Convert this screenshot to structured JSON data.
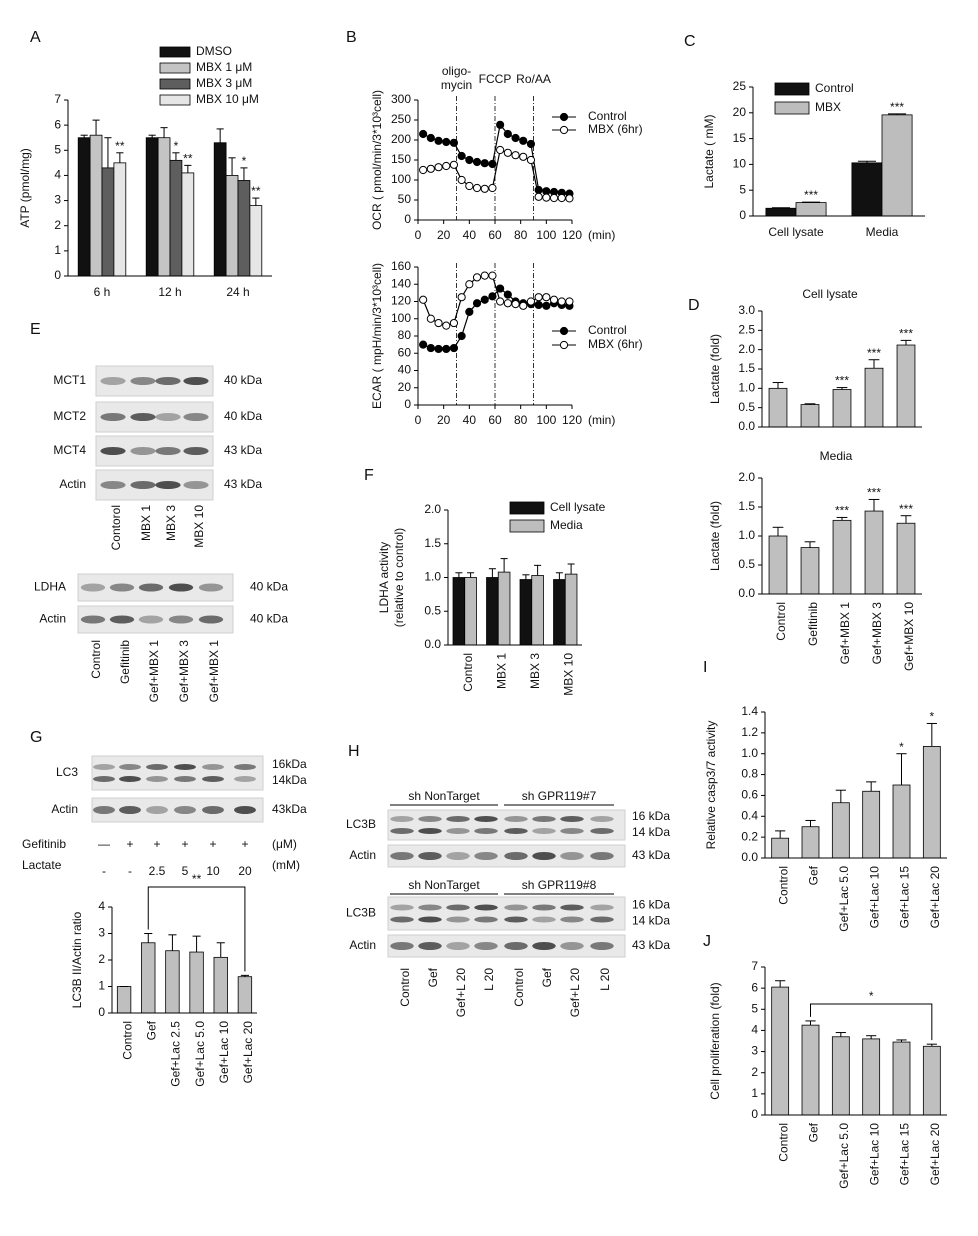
{
  "panel_labels": [
    "A",
    "B",
    "C",
    "D",
    "E",
    "F",
    "G",
    "H",
    "I",
    "J"
  ],
  "chart_data": [
    {
      "type": "bar",
      "y_label": "ATP (pmol/mg)",
      "categories": [
        "6 h",
        "12 h",
        "24 h"
      ],
      "series": [
        {
          "name": "DMSO",
          "color": "#111111",
          "values": [
            5.5,
            5.5,
            5.3
          ],
          "errors": [
            0.1,
            0.1,
            0.55
          ],
          "stars": [
            null,
            null,
            null
          ]
        },
        {
          "name": "MBX 1 μM",
          "color": "#c4c4c4",
          "values": [
            5.6,
            5.5,
            4.0
          ],
          "errors": [
            0.6,
            0.4,
            0.7
          ],
          "stars": [
            null,
            null,
            null
          ]
        },
        {
          "name": "MBX 3 μM",
          "color": "#5e5e5e",
          "values": [
            4.3,
            4.6,
            3.8
          ],
          "errors": [
            1.2,
            0.3,
            0.5
          ],
          "stars": [
            null,
            "*",
            "*"
          ]
        },
        {
          "name": "MBX 10 μM",
          "color": "#e6e6e6",
          "values": [
            4.5,
            4.1,
            2.8
          ],
          "errors": [
            0.4,
            0.3,
            0.3
          ],
          "stars": [
            "**",
            "**",
            "**"
          ]
        }
      ],
      "ylim": [
        0,
        7
      ],
      "yticks": [
        0,
        1,
        2,
        3,
        4,
        5,
        6,
        7
      ]
    },
    {
      "type": "line",
      "y_label": "OCR ( pmol/min/3*10³cell)",
      "x_label": "(min)",
      "x": [
        4,
        10,
        16,
        22,
        28,
        34,
        40,
        46,
        52,
        58,
        64,
        70,
        76,
        82,
        88,
        94,
        100,
        106,
        112,
        118
      ],
      "series": [
        {
          "name": "Control",
          "color": "#000000",
          "values": [
            215,
            205,
            198,
            195,
            193,
            160,
            150,
            145,
            142,
            140,
            238,
            215,
            205,
            198,
            190,
            75,
            72,
            70,
            68,
            66
          ]
        },
        {
          "name": "MBX (6hr)",
          "color": "#ffffff",
          "values": [
            125,
            128,
            132,
            135,
            138,
            100,
            85,
            80,
            78,
            80,
            175,
            168,
            162,
            158,
            150,
            58,
            56,
            55,
            55,
            54
          ]
        }
      ],
      "injections": [
        {
          "x": 30,
          "label": [
            "oligo-",
            "mycin"
          ]
        },
        {
          "x": 60,
          "label": [
            "FCCP"
          ]
        },
        {
          "x": 90,
          "label": [
            "Ro/AA"
          ]
        }
      ],
      "xlim": [
        0,
        120
      ],
      "xticks": [
        0,
        20,
        40,
        60,
        80,
        100,
        120
      ],
      "ylim": [
        0,
        300
      ],
      "yticks": [
        0,
        50,
        100,
        150,
        200,
        250,
        300
      ]
    },
    {
      "type": "line",
      "y_label": "ECAR ( mpH/min/3*10³cell)",
      "x_label": "(min)",
      "x": [
        4,
        10,
        16,
        22,
        28,
        34,
        40,
        46,
        52,
        58,
        64,
        70,
        76,
        82,
        88,
        94,
        100,
        106,
        112,
        118
      ],
      "series": [
        {
          "name": "Control",
          "color": "#000000",
          "values": [
            70,
            66,
            65,
            65,
            66,
            80,
            108,
            118,
            122,
            126,
            135,
            128,
            120,
            118,
            117,
            116,
            115,
            118,
            116,
            115
          ]
        },
        {
          "name": "MBX (6hr)",
          "color": "#ffffff",
          "values": [
            122,
            100,
            95,
            92,
            95,
            125,
            140,
            148,
            150,
            150,
            120,
            118,
            117,
            115,
            120,
            125,
            125,
            122,
            120,
            120
          ]
        }
      ],
      "injections": [
        {
          "x": 30
        },
        {
          "x": 60
        },
        {
          "x": 90
        }
      ],
      "xlim": [
        0,
        120
      ],
      "xticks": [
        0,
        20,
        40,
        60,
        80,
        100,
        120
      ],
      "ylim": [
        0,
        160
      ],
      "yticks": [
        0,
        20,
        40,
        60,
        80,
        100,
        120,
        140,
        160
      ]
    },
    {
      "type": "bar",
      "y_label": "Lactate ( mM)",
      "categories": [
        "Cell lysate",
        "Media"
      ],
      "series": [
        {
          "name": "Control",
          "color": "#111111",
          "values": [
            1.5,
            10.3
          ],
          "errors": [
            0.1,
            0.3
          ],
          "stars": [
            null,
            null
          ]
        },
        {
          "name": "MBX",
          "color": "#bdbdbd",
          "values": [
            2.6,
            19.6
          ],
          "errors": [
            0.1,
            0.2
          ],
          "stars": [
            "***",
            "***"
          ]
        }
      ],
      "ylim": [
        0,
        25
      ],
      "yticks": [
        0,
        5,
        10,
        15,
        20,
        25
      ]
    },
    {
      "type": "bar",
      "title": "Cell lysate",
      "y_label": "Lactate (fold)",
      "categories": [
        null,
        null,
        null,
        null,
        null
      ],
      "color": "#bfbfbf",
      "values": [
        1.0,
        0.58,
        0.97,
        1.52,
        2.12
      ],
      "errors": [
        0.15,
        0.02,
        0.05,
        0.22,
        0.12
      ],
      "stars": [
        null,
        null,
        "***",
        "***",
        "***"
      ],
      "ylim": [
        0,
        3
      ],
      "yticks": [
        {
          "value": 0,
          "label": "0.0"
        },
        0.5,
        {
          "value": 1,
          "label": "1.0"
        },
        1.5,
        {
          "value": 2,
          "label": "2.0"
        },
        2.5,
        {
          "value": 3,
          "label": "3.0"
        }
      ]
    },
    {
      "type": "bar",
      "title": "Media",
      "y_label": "Lactate (fold)",
      "categories": [
        "Control",
        "Gefitinib",
        "Gef+MBX 1",
        "Gef+MBX 3",
        "Gef+MBX 10"
      ],
      "color": "#bfbfbf",
      "values": [
        1.0,
        0.8,
        1.27,
        1.43,
        1.22
      ],
      "errors": [
        0.15,
        0.1,
        0.05,
        0.2,
        0.13
      ],
      "stars": [
        null,
        null,
        "***",
        "***",
        "***"
      ],
      "ylim": [
        0,
        2
      ],
      "yticks": [
        {
          "value": 0,
          "label": "0.0"
        },
        0.5,
        {
          "value": 1,
          "label": "1.0"
        },
        1.5,
        {
          "value": 2,
          "label": "2.0"
        }
      ]
    },
    {
      "type": "bar",
      "y_label": [
        "LDHA activity",
        "(relative to control)"
      ],
      "categories": [
        "Control",
        "MBX 1",
        "MBX 3",
        "MBX 10"
      ],
      "series": [
        {
          "name": "Cell lysate",
          "color": "#111111",
          "values": [
            1.0,
            1.0,
            0.97,
            0.97
          ],
          "errors": [
            0.07,
            0.13,
            0.07,
            0.1
          ]
        },
        {
          "name": "Media",
          "color": "#bdbdbd",
          "values": [
            1.0,
            1.08,
            1.03,
            1.05
          ],
          "errors": [
            0.07,
            0.2,
            0.15,
            0.15
          ]
        }
      ],
      "ylim": [
        0,
        2
      ],
      "yticks": [
        {
          "value": 0,
          "label": "0.0"
        },
        0.5,
        {
          "value": 1,
          "label": "1.0"
        },
        1.5,
        {
          "value": 2,
          "label": "2.0"
        }
      ]
    },
    {
      "type": "bar",
      "y_label": "LC3B II/Actin ratio",
      "categories": [
        "Control",
        "Gef",
        "Gef+Lac 2.5",
        "Gef+Lac 5.0",
        "Gef+Lac 10",
        "Gef+Lac 20"
      ],
      "color": "#bfbfbf",
      "values": [
        1.0,
        2.65,
        2.35,
        2.3,
        2.1,
        1.37
      ],
      "errors": [
        0,
        0.35,
        0.6,
        0.6,
        0.55,
        0.05
      ],
      "bracket": {
        "label": "**",
        "span": [
          "Gef",
          "Gef+Lac 20"
        ]
      },
      "ylim": [
        0,
        4
      ],
      "yticks": [
        0,
        1,
        2,
        3,
        4
      ]
    },
    {
      "type": "bar",
      "y_label": "Relative casp3/7 activity",
      "categories": [
        "Control",
        "Gef",
        "Gef+Lac 5.0",
        "Gef+Lac 10",
        "Gef+Lac 15",
        "Gef+Lac 20"
      ],
      "color": "#bfbfbf",
      "values": [
        0.19,
        0.3,
        0.53,
        0.64,
        0.7,
        1.07
      ],
      "errors": [
        0.07,
        0.06,
        0.12,
        0.09,
        0.3,
        0.22
      ],
      "stars": [
        null,
        null,
        null,
        null,
        "*",
        "*"
      ],
      "ylim": [
        0,
        1.4
      ],
      "yticks": [
        {
          "value": 0,
          "label": "0.0"
        },
        0.2,
        0.4,
        0.6,
        0.8,
        {
          "value": 1,
          "label": "1.0"
        },
        1.2,
        1.4
      ]
    },
    {
      "type": "bar",
      "y_label": "Cell proliferation (fold)",
      "categories": [
        "Control",
        "Gef",
        "Gef+Lac 5.0",
        "Gef+Lac 10",
        "Gef+Lac 15",
        "Gef+Lac 20"
      ],
      "color": "#bfbfbf",
      "values": [
        6.05,
        4.25,
        3.7,
        3.6,
        3.45,
        3.25
      ],
      "errors": [
        0.3,
        0.2,
        0.2,
        0.15,
        0.1,
        0.1
      ],
      "bracket": {
        "label": "*",
        "span": [
          "Gef",
          "Gef+Lac 20"
        ]
      },
      "ylim": [
        0,
        7
      ],
      "yticks": [
        0,
        1,
        2,
        3,
        4,
        5,
        6,
        7
      ]
    }
  ],
  "blots": [
    {
      "rows": [
        {
          "label": "MCT1",
          "kda": [
            "40 kDa"
          ]
        },
        {
          "label": "MCT2",
          "kda": [
            "40 kDa"
          ]
        },
        {
          "label": "MCT4",
          "kda": [
            "43 kDa"
          ]
        },
        {
          "label": "Actin",
          "kda": [
            "43 kDa"
          ]
        }
      ],
      "lanes": [
        "Contorol",
        "MBX 1",
        "MBX 3",
        "MBX 10"
      ]
    },
    {
      "rows": [
        {
          "label": "LDHA",
          "kda": [
            "40 kDa"
          ]
        },
        {
          "label": "Actin",
          "kda": [
            "40 kDa"
          ]
        }
      ],
      "lanes": [
        "Control",
        "Gefitinib",
        "Gef+MBX 1",
        "Gef+MBX 3",
        "Gef+MBX 1"
      ]
    },
    {
      "rows": [
        {
          "label": "LC3",
          "kda": [
            "16kDa",
            "14kDa"
          ]
        },
        {
          "label": "Actin",
          "kda": [
            "43kDa"
          ]
        }
      ],
      "treatments": [
        {
          "name": "Gefitinib",
          "marks": [
            "—",
            "+",
            "+",
            "+",
            "+",
            "+"
          ],
          "unit": "(μM)"
        },
        {
          "name": "Lactate",
          "marks": [
            "-",
            "-",
            "2.5",
            "5",
            "10",
            "20"
          ],
          "unit": "(mM)"
        }
      ]
    },
    {
      "groups": [
        "sh NonTarget",
        "sh GPR119#7"
      ],
      "rows": [
        {
          "label": "LC3B",
          "kda": [
            "16 kDa",
            "14 kDa"
          ]
        },
        {
          "label": "Actin",
          "kda": [
            "43 kDa"
          ]
        }
      ]
    },
    {
      "groups": [
        "sh NonTarget",
        "sh GPR119#8"
      ],
      "rows": [
        {
          "label": "LC3B",
          "kda": [
            "16 kDa",
            "14 kDa"
          ]
        },
        {
          "label": "Actin",
          "kda": [
            "43 kDa"
          ]
        }
      ],
      "lanes": [
        "Control",
        "Gef",
        "Gef+L 20",
        "L 20",
        "Control",
        "Gef",
        "Gef+L 20",
        "L 20"
      ]
    }
  ]
}
